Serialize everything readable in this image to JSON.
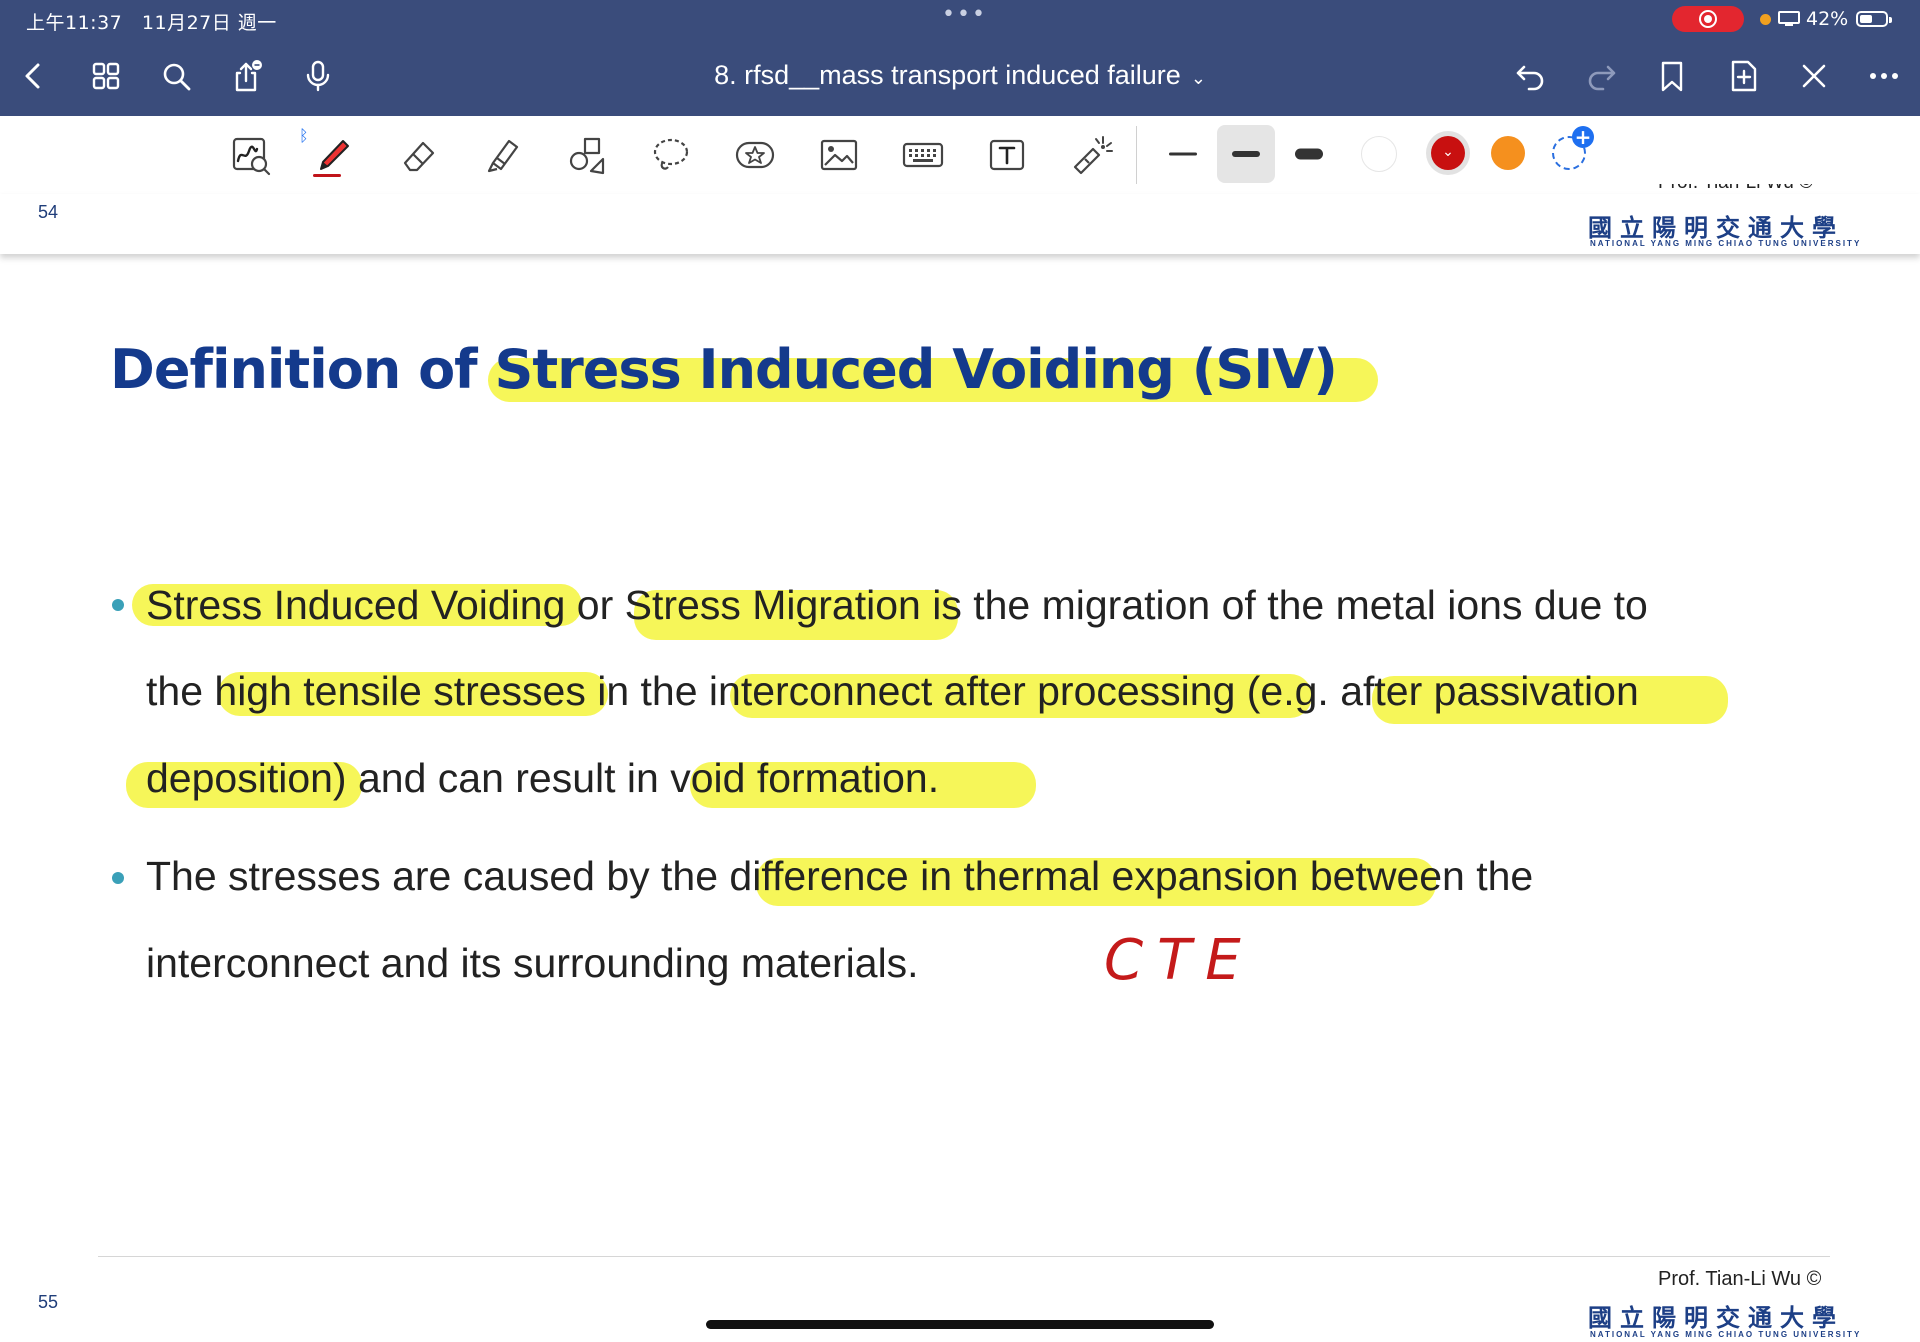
{
  "status_bar": {
    "time": "上午11:37",
    "date": "11月27日 週一",
    "battery": "42%"
  },
  "nav": {
    "document_title": "8. rfsd__mass transport induced failure",
    "icons": [
      "back-icon",
      "grid-icon",
      "search-icon",
      "share-icon",
      "microphone-icon",
      "undo-icon",
      "redo-icon",
      "bookmark-icon",
      "add-page-icon",
      "close-tools-icon",
      "more-icon"
    ]
  },
  "toolbar": {
    "tools": [
      "zoom-window-icon",
      "pen-icon",
      "eraser-icon",
      "highlighter-icon",
      "shapes-icon",
      "lasso-icon",
      "sticker-icon",
      "image-icon",
      "keyboard-icon",
      "text-icon",
      "laser-pointer-icon"
    ],
    "stroke_widths": [
      "thin",
      "medium",
      "thick"
    ],
    "selected_stroke": "medium",
    "colors": [
      "#ffffff",
      "#c81010",
      "#f5901e"
    ],
    "selected_color": "#c81010"
  },
  "previous_page": {
    "page_number": "54",
    "credit": "Prof. Tian-Li Wu ©",
    "logo_cn": "國立陽明交通大學",
    "logo_en": "NATIONAL YANG MING CHIAO TUNG UNIVERSITY"
  },
  "slide": {
    "title": "Definition of Stress Induced Voiding (SIV)",
    "bullets": [
      {
        "lines": [
          "Stress Induced Voiding or Stress Migration is the migration of the metal ions due to",
          "the high tensile stresses in the interconnect after processing (e.g. after passivation",
          "deposition) and can result in void formation."
        ]
      },
      {
        "lines": [
          "The stresses are caused by the difference in thermal expansion between the",
          "interconnect and its surrounding materials."
        ]
      }
    ],
    "annotation": "CTE",
    "page_number": "55",
    "credit": "Prof. Tian-Li Wu ©",
    "logo_cn": "國立陽明交通大學",
    "logo_en": "NATIONAL YANG MING CHIAO TUNG UNIVERSITY"
  }
}
